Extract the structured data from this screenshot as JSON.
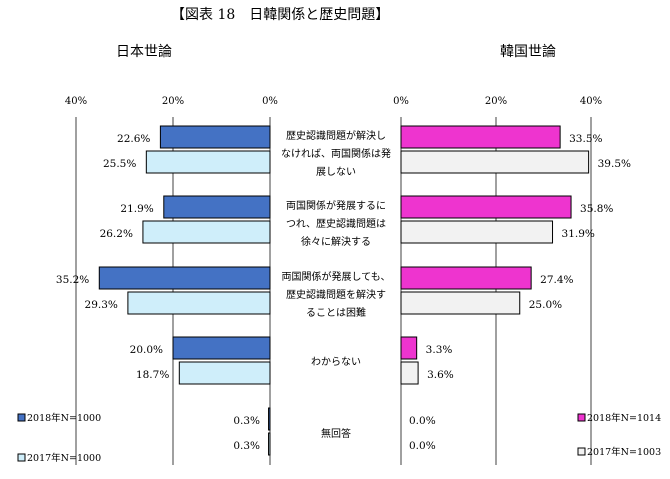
{
  "title": "【図表 18　日韓関係と歴史問題】",
  "colors": {
    "japan_2018": "#4472c4",
    "japan_2017": "#cfeefa",
    "korea_2018": "#ee34cf",
    "korea_2017": "#f2f2f2",
    "bar_stroke": "#000000",
    "axis": "#404040"
  },
  "chart_data": [
    {
      "type": "bar",
      "orientation": "horizontal-reversed",
      "title": "日本世論",
      "categories": [
        "歴史認識問題が解決しなければ、両国関係は発展しない",
        "両国関係が発展するにつれ、歴史認識問題は徐々に解決する",
        "両国関係が発展しても、歴史認識問題を解決することは困難",
        "わからない",
        "無回答"
      ],
      "series": [
        {
          "name": "2018年N=1000",
          "values": [
            22.6,
            21.9,
            35.2,
            20.0,
            0.3
          ],
          "labels": [
            "22.6%",
            "21.9%",
            "35.2%",
            "20.0%",
            "0.3%"
          ]
        },
        {
          "name": "2017年N=1000",
          "values": [
            25.5,
            26.2,
            29.3,
            18.7,
            0.3
          ],
          "labels": [
            "25.5%",
            "26.2%",
            "29.3%",
            "18.7%",
            "0.3%"
          ]
        }
      ],
      "xlim": [
        0,
        40
      ],
      "ticks": [
        "40%",
        "20%",
        "0%"
      ],
      "grid": true
    },
    {
      "type": "bar",
      "orientation": "horizontal",
      "title": "韓国世論",
      "categories": [
        "歴史認識問題が解決しなければ、両国関係は発展しない",
        "両国関係が発展するにつれ、歴史認識問題は徐々に解決する",
        "両国関係が発展しても、歴史認識問題を解決することは困難",
        "わからない",
        "無回答"
      ],
      "series": [
        {
          "name": "2018年N=1014",
          "values": [
            33.5,
            35.8,
            27.4,
            3.3,
            0.0
          ],
          "labels": [
            "33.5%",
            "35.8%",
            "27.4%",
            "3.3%",
            "0.0%"
          ]
        },
        {
          "name": "2017年N=1003",
          "values": [
            39.5,
            31.9,
            25.0,
            3.6,
            0.0
          ],
          "labels": [
            "39.5%",
            "31.9%",
            "25.0%",
            "3.6%",
            "0.0%"
          ]
        }
      ],
      "xlim": [
        0,
        40
      ],
      "ticks": [
        "0%",
        "20%",
        "40%"
      ],
      "grid": true
    }
  ],
  "category_labels": [
    [
      "歴史認識問題が解決し",
      "なければ、両国関係は発",
      "展しない"
    ],
    [
      "両国関係が発展するに",
      "つれ、歴史認識問題は",
      "徐々に解決する"
    ],
    [
      "両国関係が発展しても、",
      "歴史認識問題を解決す",
      "ることは困難"
    ],
    [
      "わからない"
    ],
    [
      "無回答"
    ]
  ]
}
